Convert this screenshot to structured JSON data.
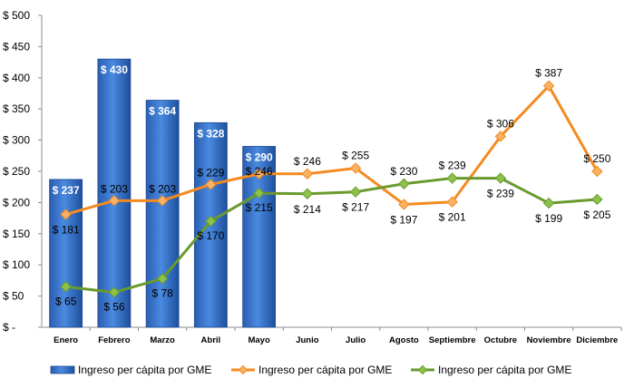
{
  "chart_data": {
    "type": "bar+line",
    "categories": [
      "Enero",
      "Febrero",
      "Marzo",
      "Abril",
      "Mayo",
      "Junio",
      "Julio",
      "Agosto",
      "Septiembre",
      "Octubre",
      "Noviembre",
      "Diciembre"
    ],
    "y_ticks": [
      "$ -",
      "$ 50",
      "$ 100",
      "$ 150",
      "$ 200",
      "$ 250",
      "$ 300",
      "$ 350",
      "$ 400",
      "$ 450",
      "$ 500"
    ],
    "ylim": [
      0,
      500
    ],
    "grid": false,
    "legend_position": "bottom",
    "series": [
      {
        "name": "Ingreso per cápita por GME",
        "kind": "bar",
        "color": "#2e6cc7",
        "values": [
          237,
          430,
          364,
          328,
          290,
          null,
          null,
          null,
          null,
          null,
          null,
          null
        ],
        "labels": [
          "$ 237",
          "$ 430",
          "$ 364",
          "$ 328",
          "$ 290",
          "",
          "",
          "",
          "",
          "",
          "",
          ""
        ]
      },
      {
        "name": "Ingreso per cápita por GME",
        "kind": "line",
        "color": "#f58a1f",
        "marker_color": "#f7b263",
        "values": [
          181,
          203,
          203,
          229,
          246,
          246,
          255,
          197,
          201,
          306,
          387,
          250
        ],
        "labels": [
          "$ 181",
          "$ 203",
          "$ 203",
          "$ 229",
          "$ 246",
          "$ 246",
          "$ 255",
          "$ 197",
          "$ 201",
          "$ 306",
          "$ 387",
          "$ 250"
        ]
      },
      {
        "name": "Ingreso per cápita por GME",
        "kind": "line",
        "color": "#6a9a2e",
        "marker_color": "#8cc24a",
        "values": [
          65,
          56,
          78,
          170,
          215,
          214,
          217,
          230,
          239,
          239,
          199,
          205
        ],
        "labels": [
          "$ 65",
          "$ 56",
          "$ 78",
          "$ 170",
          "$ 215",
          "$ 214",
          "$ 217",
          "$ 230",
          "$ 239",
          "$ 239",
          "$ 199",
          "$ 205"
        ]
      }
    ]
  }
}
